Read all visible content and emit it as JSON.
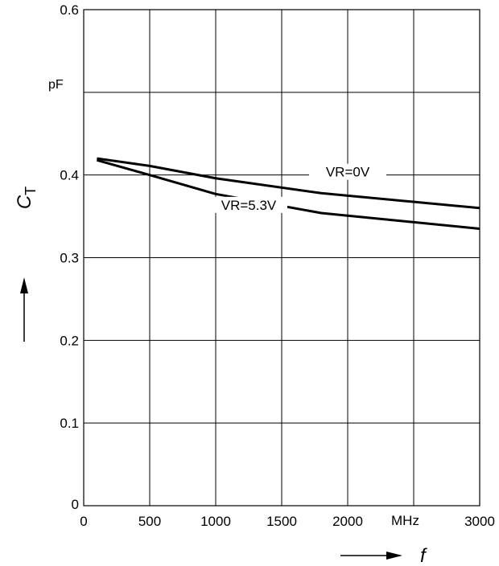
{
  "chart_data": {
    "type": "line",
    "title": "",
    "xlabel": "f",
    "ylabel": "C",
    "ylabel_subscript": "T",
    "x_unit": "MHz",
    "y_unit": "pF",
    "xlim": [
      0,
      3000
    ],
    "ylim": [
      0,
      0.6
    ],
    "x_ticks": [
      0,
      500,
      1000,
      1500,
      2000,
      3000
    ],
    "x_tick_labels": [
      "0",
      "500",
      "1000",
      "1500",
      "2000",
      "3000"
    ],
    "y_ticks": [
      0,
      0.1,
      0.2,
      0.3,
      0.4,
      0.6
    ],
    "y_tick_labels": [
      "0",
      "0.1",
      "0.2",
      "0.3",
      "0.4",
      "0.6"
    ],
    "grid": true,
    "series": [
      {
        "name": "VR=0V",
        "x": [
          100,
          500,
          1000,
          1800,
          3000
        ],
        "y": [
          0.42,
          0.411,
          0.396,
          0.378,
          0.36
        ]
      },
      {
        "name": "VR=5.3V",
        "x": [
          100,
          500,
          1000,
          1800,
          3000
        ],
        "y": [
          0.418,
          0.4,
          0.377,
          0.354,
          0.335
        ]
      }
    ]
  },
  "colors": {
    "line": "#000000",
    "grid": "#000000",
    "background": "#ffffff"
  }
}
